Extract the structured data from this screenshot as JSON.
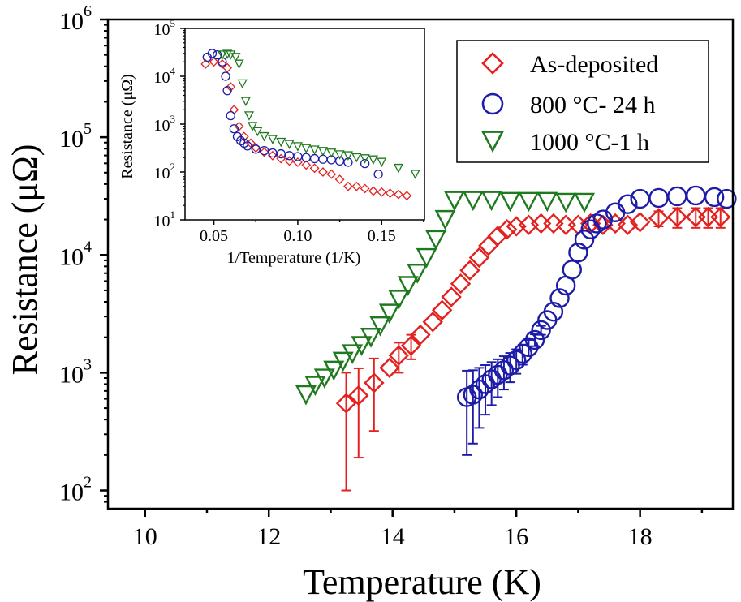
{
  "chart_data": [
    {
      "type": "scatter",
      "title": "",
      "xlabel": "Temperature (K)",
      "ylabel": "Resistance (μΩ)",
      "xscale": "linear",
      "yscale": "log",
      "xlim": [
        9.4,
        19.5
      ],
      "ylim": [
        70,
        1000000
      ],
      "xticks": [
        10,
        12,
        14,
        16,
        18
      ],
      "xtick_labels": [
        "10",
        "12",
        "14",
        "16",
        "18"
      ],
      "yticks": [
        100,
        1000,
        10000,
        100000,
        1000000
      ],
      "ytick_base": "10",
      "ytick_exponents": [
        "2",
        "3",
        "4",
        "5",
        "6"
      ],
      "legend_position": "top-right",
      "grid": false,
      "series": [
        {
          "name": "As-deposited",
          "marker": "diamond",
          "color": "#e3221f",
          "x": [
            13.25,
            13.45,
            13.7,
            13.95,
            14.1,
            14.3,
            14.45,
            14.65,
            14.8,
            14.95,
            15.1,
            15.25,
            15.4,
            15.55,
            15.7,
            15.85,
            16.0,
            16.2,
            16.4,
            16.6,
            16.8,
            17.0,
            17.2,
            17.4,
            17.6,
            17.8,
            18.0,
            18.3,
            18.6,
            18.9,
            19.1,
            19.3
          ],
          "y": [
            550,
            640,
            820,
            1100,
            1400,
            1700,
            2100,
            2700,
            3400,
            4400,
            5700,
            7400,
            9500,
            12000,
            14500,
            16500,
            17500,
            18000,
            18500,
            18500,
            18000,
            18000,
            18500,
            18000,
            18500,
            18000,
            19000,
            20500,
            21000,
            21000,
            21000,
            21000
          ],
          "err_minus": [
            450,
            450,
            500,
            0,
            400,
            400,
            0,
            0,
            0,
            0,
            0,
            0,
            0,
            0,
            0,
            0,
            0,
            0,
            0,
            0,
            0,
            0,
            0,
            0,
            0,
            0,
            0,
            3000,
            4000,
            4000,
            4000,
            4000
          ],
          "err_plus": [
            450,
            450,
            500,
            0,
            400,
            400,
            0,
            0,
            0,
            0,
            0,
            0,
            0,
            0,
            0,
            0,
            0,
            0,
            0,
            0,
            0,
            0,
            0,
            0,
            0,
            0,
            0,
            3000,
            4000,
            4000,
            4000,
            4000
          ]
        },
        {
          "name": "800 °C- 24 h",
          "marker": "circle",
          "color": "#1c1ca8",
          "x": [
            15.2,
            15.3,
            15.4,
            15.5,
            15.6,
            15.7,
            15.8,
            15.9,
            16.0,
            16.1,
            16.2,
            16.3,
            16.4,
            16.5,
            16.6,
            16.7,
            16.8,
            16.9,
            17.0,
            17.1,
            17.2,
            17.3,
            17.4,
            17.6,
            17.8,
            18.0,
            18.3,
            18.6,
            18.9,
            19.2,
            19.4
          ],
          "y": [
            620,
            650,
            720,
            800,
            880,
            960,
            1050,
            1150,
            1280,
            1450,
            1650,
            1900,
            2300,
            2800,
            3300,
            4300,
            5500,
            7500,
            10500,
            13500,
            16500,
            18500,
            20000,
            23000,
            27000,
            30000,
            30500,
            31500,
            32000,
            31000,
            30000
          ],
          "err_minus": [
            420,
            400,
            380,
            360,
            350,
            340,
            330,
            320,
            300,
            280,
            250,
            220,
            200,
            0,
            0,
            0,
            0,
            0,
            0,
            0,
            0,
            0,
            0,
            0,
            0,
            0,
            0,
            0,
            0,
            0,
            0
          ],
          "err_plus": [
            420,
            400,
            380,
            360,
            350,
            340,
            330,
            320,
            300,
            280,
            250,
            220,
            200,
            0,
            0,
            0,
            0,
            0,
            0,
            0,
            0,
            0,
            0,
            0,
            0,
            0,
            0,
            0,
            0,
            0,
            0
          ]
        },
        {
          "name": "1000 °C-1 h",
          "marker": "triangle-down",
          "color": "#1f7a1f",
          "x": [
            12.6,
            12.75,
            12.9,
            13.05,
            13.2,
            13.35,
            13.5,
            13.65,
            13.8,
            13.95,
            14.1,
            14.25,
            14.4,
            14.55,
            14.7,
            14.85,
            15.0,
            15.3,
            15.6,
            15.9,
            16.2,
            16.5,
            16.8,
            17.1
          ],
          "y": [
            650,
            780,
            900,
            1050,
            1250,
            1450,
            1700,
            2000,
            2500,
            3200,
            4200,
            5500,
            7000,
            9500,
            13500,
            20000,
            29000,
            29000,
            29000,
            28500,
            28500,
            28500,
            28000,
            28000
          ]
        }
      ],
      "inset": {
        "type": "scatter",
        "xlabel": "1/Temperature (1/K)",
        "ylabel": "Resistance (μΩ)",
        "xscale": "linear",
        "yscale": "log",
        "xlim": [
          0.0328,
          0.1755
        ],
        "ylim": [
          10,
          100000
        ],
        "xticks": [
          0.05,
          0.1,
          0.15
        ],
        "xtick_labels": [
          "0.05",
          "0.10",
          "0.15"
        ],
        "yticks": [
          10,
          100,
          1000,
          10000,
          100000
        ],
        "ytick_base": "10",
        "ytick_exponents": [
          "1",
          "2",
          "3",
          "4",
          "5"
        ],
        "series": [
          {
            "name": "As-deposited",
            "x": [
              0.045,
              0.05,
              0.055,
              0.058,
              0.06,
              0.062,
              0.065,
              0.068,
              0.072,
              0.075,
              0.08,
              0.085,
              0.09,
              0.095,
              0.1,
              0.105,
              0.11,
              0.115,
              0.12,
              0.125,
              0.13,
              0.135,
              0.14,
              0.145,
              0.15,
              0.155,
              0.16,
              0.165
            ],
            "y": [
              18000,
              20000,
              18000,
              15000,
              6000,
              2000,
              900,
              550,
              400,
              320,
              260,
              220,
              190,
              170,
              160,
              140,
              120,
              100,
              90,
              70,
              50,
              50,
              45,
              40,
              38,
              36,
              34,
              32
            ]
          },
          {
            "name": "800 °C- 24 h",
            "x": [
              0.046,
              0.049,
              0.052,
              0.055,
              0.057,
              0.058,
              0.06,
              0.062,
              0.064,
              0.066,
              0.068,
              0.07,
              0.075,
              0.08,
              0.085,
              0.09,
              0.095,
              0.1,
              0.105,
              0.11,
              0.115,
              0.12,
              0.125,
              0.13,
              0.14,
              0.148
            ],
            "y": [
              25000,
              30000,
              28000,
              20000,
              10000,
              5000,
              1500,
              800,
              550,
              450,
              400,
              350,
              300,
              280,
              250,
              240,
              220,
              210,
              200,
              190,
              185,
              180,
              170,
              160,
              150,
              90
            ]
          },
          {
            "name": "1000 °C-1 h",
            "x": [
              0.055,
              0.058,
              0.06,
              0.063,
              0.065,
              0.067,
              0.069,
              0.071,
              0.073,
              0.076,
              0.08,
              0.085,
              0.09,
              0.095,
              0.1,
              0.105,
              0.11,
              0.115,
              0.12,
              0.125,
              0.13,
              0.135,
              0.14,
              0.145,
              0.15,
              0.16,
              0.17
            ],
            "y": [
              28000,
              29000,
              28000,
              25000,
              18000,
              7000,
              3000,
              1500,
              900,
              700,
              550,
              480,
              420,
              380,
              340,
              310,
              290,
              270,
              250,
              230,
              220,
              200,
              190,
              180,
              160,
              120,
              90
            ]
          }
        ]
      }
    }
  ]
}
